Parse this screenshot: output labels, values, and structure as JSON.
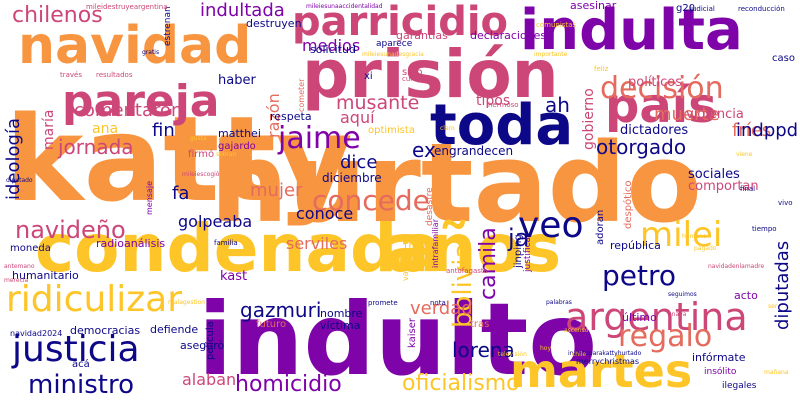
{
  "word_cloud": {
    "palette": [
      "#f89540",
      "#cc4778",
      "#7e03a8",
      "#0d0887",
      "#fdc527",
      "#e46b5d"
    ],
    "words": [
      {
        "text": "katty",
        "color": "#f89540"
      },
      {
        "text": "hurtado",
        "color": "#f89540"
      },
      {
        "text": "indulto",
        "color": "#7e03a8"
      },
      {
        "text": "condenada",
        "color": "#fdc527"
      },
      {
        "text": "años",
        "color": "#fdc527"
      },
      {
        "text": "prisión",
        "color": "#cc4778"
      },
      {
        "text": "navidad",
        "color": "#f89540"
      },
      {
        "text": "indulta",
        "color": "#7e03a8"
      },
      {
        "text": "país",
        "color": "#cc4778"
      },
      {
        "text": "toda",
        "color": "#0d0887"
      },
      {
        "text": "pareja",
        "color": "#cc4778"
      },
      {
        "text": "parricidio",
        "color": "#cc4778"
      },
      {
        "text": "martes",
        "color": "#fdc527"
      },
      {
        "text": "justicia",
        "color": "#0d0887"
      },
      {
        "text": "decisión",
        "color": "#e46b5d"
      },
      {
        "text": "argentina",
        "color": "#cc4778"
      },
      {
        "text": "veo",
        "color": "#0d0887"
      },
      {
        "text": "milei",
        "color": "#fdc527"
      },
      {
        "text": "ridiculizar",
        "color": "#fdc527"
      },
      {
        "text": "regalo",
        "color": "#e46b5d"
      },
      {
        "text": "chilenos",
        "color": "#cc4778"
      },
      {
        "text": "jaime",
        "color": "#7e03a8"
      },
      {
        "text": "concede",
        "color": "#e46b5d"
      },
      {
        "text": "ministro",
        "color": "#0d0887"
      },
      {
        "text": "petro",
        "color": "#0d0887"
      },
      {
        "text": "navideño",
        "color": "#cc4778"
      },
      {
        "text": "bolivia",
        "color": "#fdc527"
      },
      {
        "text": "indultada",
        "color": "#7e03a8"
      },
      {
        "text": "oficialismo",
        "color": "#fdc527"
      },
      {
        "text": "homicidio",
        "color": "#7e03a8"
      },
      {
        "text": "camila",
        "color": "#7e03a8"
      },
      {
        "text": "lorena",
        "color": "#0d0887"
      },
      {
        "text": "otorgado",
        "color": "#0d0887"
      },
      {
        "text": "jornada",
        "color": "#cc4778"
      },
      {
        "text": "musante",
        "color": "#cc4778"
      },
      {
        "text": "comentaron",
        "color": "#cc4778"
      },
      {
        "text": "muerte",
        "color": "#e46b5d"
      },
      {
        "text": "gazmuri",
        "color": "#0d0887"
      },
      {
        "text": "diputadas",
        "color": "#0d0887"
      },
      {
        "text": "ideología",
        "color": "#0d0887"
      },
      {
        "text": "mujer",
        "color": "#e46b5d"
      },
      {
        "text": "verdad",
        "color": "#e46b5d"
      },
      {
        "text": "golpeaba",
        "color": "#0d0887"
      },
      {
        "text": "serviles",
        "color": "#e46b5d"
      },
      {
        "text": "aquí",
        "color": "#cc4778"
      },
      {
        "text": "fríes",
        "color": "#e46b5d"
      },
      {
        "text": "indppd",
        "color": "#0d0887"
      },
      {
        "text": "dice",
        "color": "#0d0887"
      },
      {
        "text": "ex",
        "color": "#0d0887"
      },
      {
        "text": "fin",
        "color": "#0d0887"
      },
      {
        "text": "fa",
        "color": "#0d0887"
      },
      {
        "text": "ja",
        "color": "#0d0887"
      },
      {
        "text": "ah",
        "color": "#0d0887"
      },
      {
        "text": "conoce",
        "color": "#0d0887"
      },
      {
        "text": "ana",
        "color": "#fdc527"
      },
      {
        "text": "maría",
        "color": "#cc4778"
      },
      {
        "text": "alaban",
        "color": "#cc4778"
      },
      {
        "text": "medios",
        "color": "#7e03a8"
      },
      {
        "text": "tipos",
        "color": "#cc4778"
      },
      {
        "text": "dictadores",
        "color": "#0d0887"
      },
      {
        "text": "violencia",
        "color": "#cc4778"
      },
      {
        "text": "políticos",
        "color": "#cc4778"
      },
      {
        "text": "gobierno",
        "color": "#cc4778"
      },
      {
        "text": "razón",
        "color": "#e46b5d"
      },
      {
        "text": "kast",
        "color": "#7e03a8"
      },
      {
        "text": "haber",
        "color": "#0d0887"
      },
      {
        "text": "engrandecen",
        "color": "#0d0887"
      },
      {
        "text": "diciembre",
        "color": "#0d0887"
      },
      {
        "text": "sociales",
        "color": "#0d0887"
      },
      {
        "text": "comportan",
        "color": "#cc4778"
      },
      {
        "text": "democracias",
        "color": "#0d0887"
      },
      {
        "text": "defiende",
        "color": "#0d0887"
      },
      {
        "text": "humanitario",
        "color": "#0d0887"
      },
      {
        "text": "radioanálisis",
        "color": "#7e03a8"
      },
      {
        "text": "república",
        "color": "#0d0887"
      },
      {
        "text": "trato",
        "color": "#fdc527"
      },
      {
        "text": "respeta",
        "color": "#0d0887"
      },
      {
        "text": "optimista",
        "color": "#fdc527"
      },
      {
        "text": "matthei",
        "color": "#0d0887"
      },
      {
        "text": "gajardo",
        "color": "#7e03a8"
      },
      {
        "text": "firmó",
        "color": "#cc4778"
      },
      {
        "text": "destruyen",
        "color": "#0d0887"
      },
      {
        "text": "garantías",
        "color": "#cc4778"
      },
      {
        "text": "declaraciones",
        "color": "#7e03a8"
      },
      {
        "text": "solicitud",
        "color": "#0d0887"
      },
      {
        "text": "aparece",
        "color": "#0d0887"
      },
      {
        "text": "asesinar",
        "color": "#7e03a8"
      },
      {
        "text": "g20",
        "color": "#0d0887"
      },
      {
        "text": "xi",
        "color": "#0d0887"
      },
      {
        "text": "sino",
        "color": "#cc4778"
      },
      {
        "text": "nombre",
        "color": "#0d0887"
      },
      {
        "text": "víctima",
        "color": "#0d0887"
      },
      {
        "text": "asegurò",
        "color": "#0d0887"
      },
      {
        "text": "último",
        "color": "#7e03a8"
      },
      {
        "text": "acto",
        "color": "#7e03a8"
      },
      {
        "text": "película",
        "color": "#0d0887"
      },
      {
        "text": "kaiser",
        "color": "#7e03a8"
      },
      {
        "text": "futuro",
        "color": "#e46b5d"
      },
      {
        "text": "tras",
        "color": "#e46b5d"
      },
      {
        "text": "acá",
        "color": "#0d0887"
      },
      {
        "text": "moneda",
        "color": "#0d0887"
      },
      {
        "text": "navidad2024",
        "color": "#0d0887"
      },
      {
        "text": "mensaje",
        "color": "#7e03a8"
      },
      {
        "text": "estrenan",
        "color": "#0d0887"
      },
      {
        "text": "adoran",
        "color": "#0d0887"
      },
      {
        "text": "despótico",
        "color": "#e46b5d"
      },
      {
        "text": "desastre",
        "color": "#e46b5d"
      },
      {
        "text": "intrafamiliar",
        "color": "#7e03a8"
      },
      {
        "text": "jinping",
        "color": "#0d0887"
      },
      {
        "text": "justifica",
        "color": "#7e03a8"
      },
      {
        "text": "valora",
        "color": "#fdc527"
      },
      {
        "text": "cometer",
        "color": "#e46b5d"
      },
      {
        "text": "merrychristmas",
        "color": "#0d0887"
      },
      {
        "text": "infórmate",
        "color": "#0d0887"
      },
      {
        "text": "insólito",
        "color": "#7e03a8"
      },
      {
        "text": "ilegales",
        "color": "#0d0887"
      },
      {
        "text": "caso",
        "color": "#0d0887"
      },
      {
        "text": "final",
        "color": "#0d0887"
      },
      {
        "text": "vivo",
        "color": "#0d0887"
      },
      {
        "text": "tiempo",
        "color": "#0d0887"
      },
      {
        "text": "pagado",
        "color": "#fdc527"
      },
      {
        "text": "nota",
        "color": "#0d0887"
      },
      {
        "text": "antofagasta",
        "color": "#cc4778"
      },
      {
        "text": "familia",
        "color": "#0d0887"
      },
      {
        "text": "promete",
        "color": "#0d0887"
      },
      {
        "text": "cumple",
        "color": "#cc4778"
      },
      {
        "text": "hermoso",
        "color": "#cc4778"
      },
      {
        "text": "feliz",
        "color": "#fdc527"
      },
      {
        "text": "comunistas",
        "color": "#fdc527"
      },
      {
        "text": "judicial",
        "color": "#0d0887"
      },
      {
        "text": "reconducción",
        "color": "#0d0887"
      },
      {
        "text": "importante",
        "color": "#fdc527"
      },
      {
        "text": "gratis",
        "color": "#0d0887"
      },
      {
        "text": "través",
        "color": "#cc4778"
      },
      {
        "text": "resultados",
        "color": "#cc4778"
      },
      {
        "text": "mileidestruyeargentina",
        "color": "#cc4778"
      },
      {
        "text": "navidadenlamadre",
        "color": "#cc4778"
      },
      {
        "text": "indultoparakattyhurtado",
        "color": "#0d0887"
      },
      {
        "text": "seguimos",
        "color": "#0d0887"
      },
      {
        "text": "palabras",
        "color": "#0d0887"
      },
      {
        "text": "televisión",
        "color": "#fdc527"
      },
      {
        "text": "ascenso",
        "color": "#fdc527"
      },
      {
        "text": "anaya",
        "color": "#cc4778"
      },
      {
        "text": "antemano",
        "color": "#cc4778"
      },
      {
        "text": "merecía",
        "color": "#cc4778"
      },
      {
        "text": "diputado",
        "color": "#0d0887"
      },
      {
        "text": "radio",
        "color": "#fdc527"
      },
      {
        "text": "sobran",
        "color": "#fdc527"
      },
      {
        "text": "gusta",
        "color": "#fdc527"
      },
      {
        "text": "mileiescogió",
        "color": "#cc4778"
      },
      {
        "text": "claro",
        "color": "#fdc527"
      },
      {
        "text": "chile",
        "color": "#fdc527"
      },
      {
        "text": "ser",
        "color": "#fdc527"
      },
      {
        "text": "malagestion",
        "color": "#fdc527"
      },
      {
        "text": "mileiesunaaccidentalidad",
        "color": "#7e03a8"
      },
      {
        "text": "mileiesunadesgracia",
        "color": "#fdc527"
      },
      {
        "text": "hoy",
        "color": "#fdc527"
      },
      {
        "text": "mañana",
        "color": "#fdc527"
      },
      {
        "text": "viene",
        "color": "#fdc527"
      },
      {
        "text": "humano",
        "color": "#fdc527"
      }
    ]
  }
}
